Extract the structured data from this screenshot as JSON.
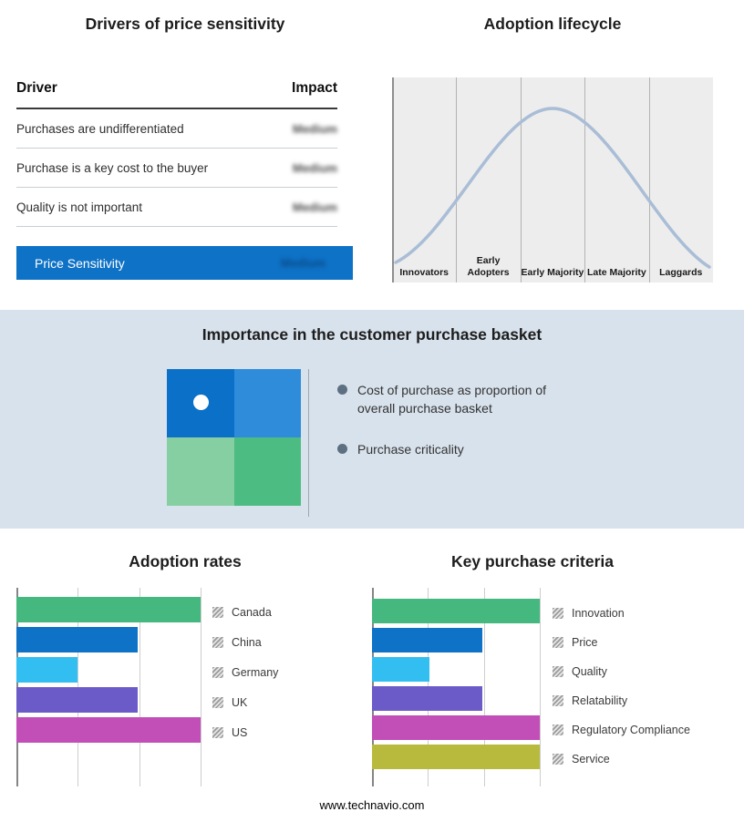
{
  "drivers_panel": {
    "title": "Drivers of price sensitivity",
    "columns": {
      "driver": "Driver",
      "impact": "Impact"
    },
    "rows": [
      {
        "label": "Purchases are undifferentiated",
        "impact": "Medium"
      },
      {
        "label": "Purchase is a key cost to the buyer",
        "impact": "Medium"
      },
      {
        "label": "Quality is not important",
        "impact": "Medium"
      }
    ],
    "summary": {
      "label": "Price Sensitivity",
      "impact": "Medium",
      "color": "#0e72c6"
    }
  },
  "basket_panel": {
    "title": "Importance in the customer purchase basket",
    "bullets": [
      "Cost of purchase as proportion of overall purchase basket",
      "Purchase criticality"
    ],
    "quadrant_colors": {
      "top_left": "#0b70c7",
      "top_right": "#2e8cdb",
      "bottom_left": "#85cfa3",
      "bottom_right": "#4cbc82"
    }
  },
  "chart_data": [
    {
      "type": "line",
      "title": "Adoption lifecycle",
      "categories": [
        "Innovators",
        "Early Adopters",
        "Early Majority",
        "Late Majority",
        "Laggards"
      ],
      "description": "Bell-shaped adoption curve peaking over Early Majority; no numeric axes shown",
      "curve_color": "#a9bdd6",
      "grid": "vertical segment dividers",
      "plot_background": "#ededed"
    },
    {
      "type": "bar",
      "title": "Adoption rates",
      "orientation": "horizontal",
      "categories": [
        "Canada",
        "China",
        "Germany",
        "UK",
        "US"
      ],
      "values": [
        100,
        66,
        33,
        66,
        100
      ],
      "units": "relative (axis unlabeled)",
      "xlim": [
        0,
        100
      ],
      "colors": [
        "#45b880",
        "#0e72c6",
        "#33bef2",
        "#6a5bc8",
        "#c24fb8"
      ],
      "legend_position": "right",
      "grid": "vertical gridlines at thirds"
    },
    {
      "type": "bar",
      "title": "Key purchase criteria",
      "orientation": "horizontal",
      "categories": [
        "Innovation",
        "Price",
        "Quality",
        "Relatability",
        "Regulatory Compliance",
        "Service"
      ],
      "values": [
        100,
        66,
        34,
        66,
        100,
        100
      ],
      "units": "relative (axis unlabeled)",
      "xlim": [
        0,
        100
      ],
      "colors": [
        "#45b880",
        "#0e72c6",
        "#33bef2",
        "#6a5bc8",
        "#c24fb8",
        "#b8ba3e"
      ],
      "legend_position": "right",
      "grid": "vertical gridlines at thirds"
    }
  ],
  "footer": {
    "url": "www.technavio.com"
  }
}
